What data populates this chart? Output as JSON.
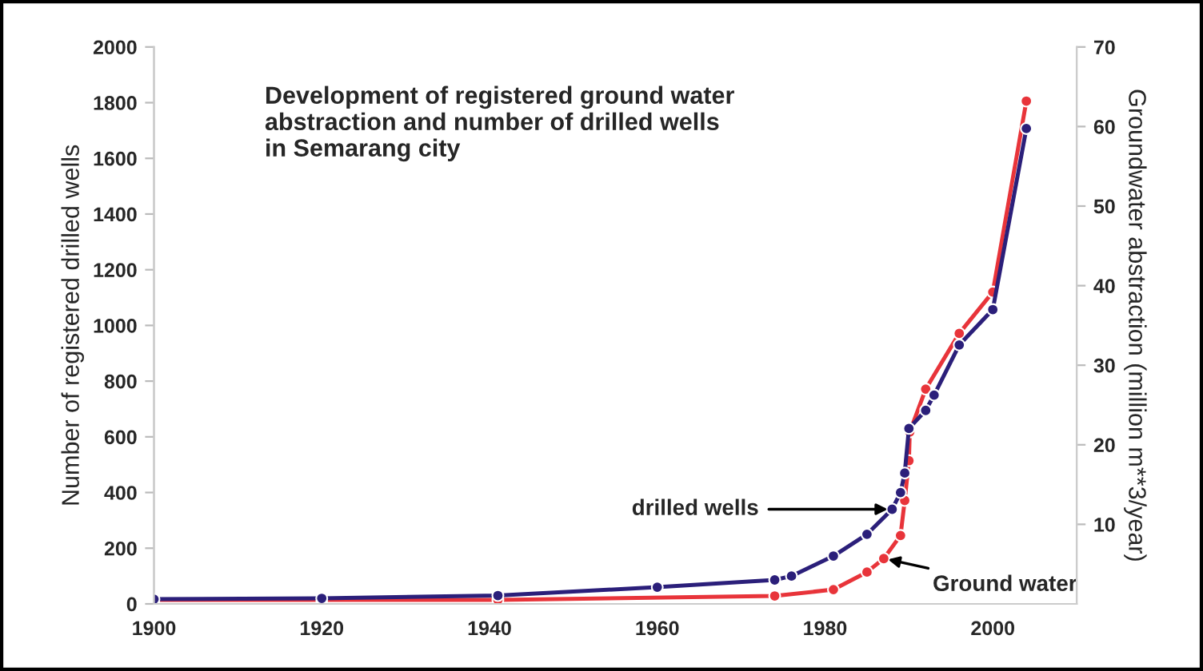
{
  "chart_data": {
    "type": "line",
    "title": "Development of registered ground water\nabstraction and number of drilled wells\nin Semarang city",
    "ylabel": "Number of registered drilled wells",
    "y2label": "Groundwater abstraction (million m**3/year)",
    "series": [
      {
        "name": "drilled wells",
        "color": "#2b1f7a",
        "x": [
          1900,
          1920,
          1941,
          1960,
          1974,
          1976,
          1981,
          1985,
          1988,
          1989,
          1989.5,
          1990,
          1992,
          1993,
          1996,
          2000,
          2004
        ],
        "values": [
          17,
          20,
          30,
          60,
          86,
          100,
          172,
          250,
          340,
          400,
          470,
          630,
          695,
          750,
          930,
          1057,
          1707
        ]
      },
      {
        "name": "Ground water",
        "color": "#e8343a",
        "axis": "y2",
        "x": [
          1900,
          1920,
          1941,
          1974,
          1981,
          1985,
          1987,
          1989,
          1989.5,
          1990,
          1990.1,
          1992,
          1996,
          2000,
          2004
        ],
        "values": [
          0.5,
          0.5,
          0.5,
          1.0,
          1.8,
          4,
          5.7,
          8.6,
          13,
          18,
          21.6,
          27,
          34,
          39.2,
          63.2
        ]
      }
    ],
    "xlim": [
      1900,
      2010
    ],
    "xticks": [
      1900,
      1920,
      1940,
      1960,
      1980,
      2000
    ],
    "ylim": [
      0,
      2000
    ],
    "yticks": [
      0,
      200,
      400,
      600,
      800,
      1000,
      1200,
      1400,
      1600,
      1800,
      2000
    ],
    "y2lim": [
      0,
      70
    ],
    "y2ticks": [
      10,
      20,
      30,
      40,
      50,
      60,
      70
    ],
    "marker": "circle",
    "line_style": "solid",
    "grid": false,
    "legend": false
  }
}
